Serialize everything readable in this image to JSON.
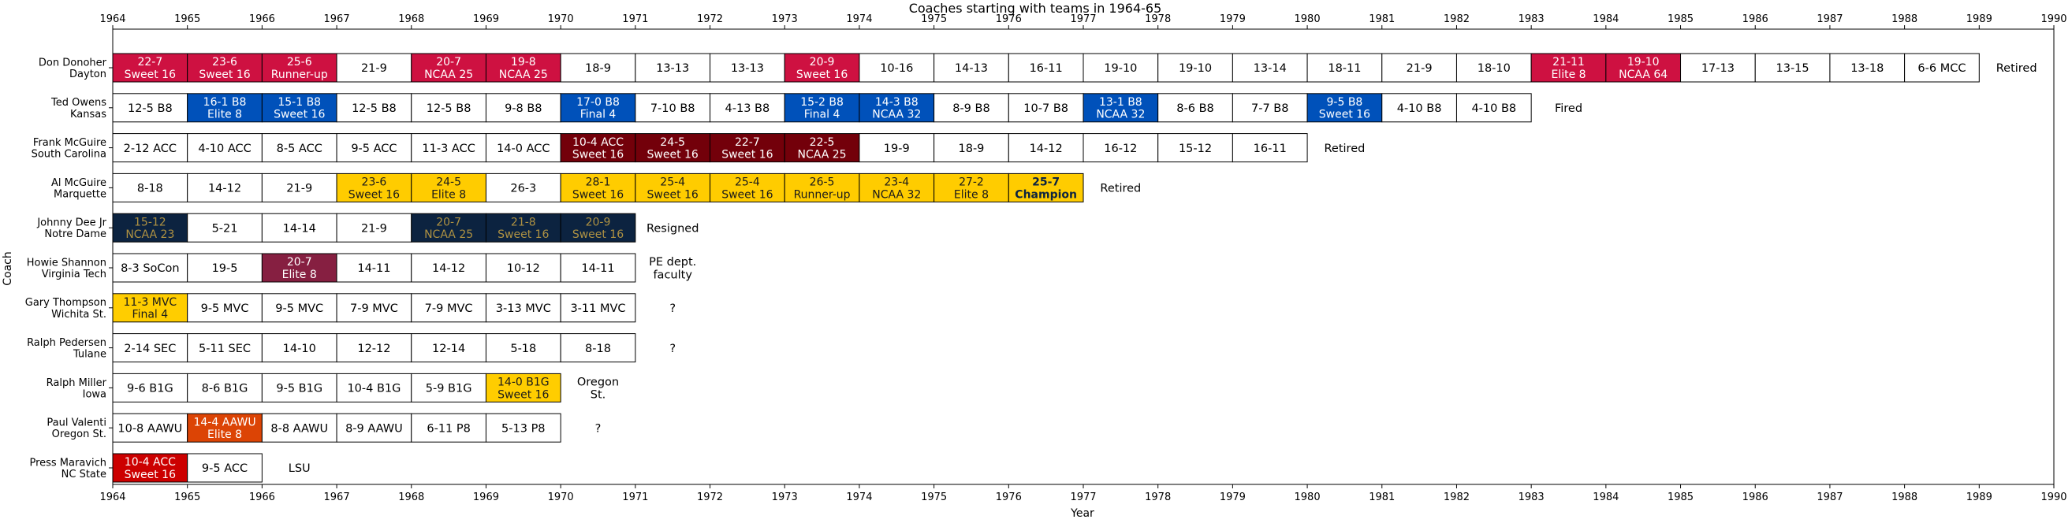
{
  "chart_data": {
    "type": "gantt",
    "title": "Coaches starting with teams in 1964-65",
    "xlabel": "Year",
    "ylabel": "Coach",
    "xlim": [
      1964,
      1990
    ],
    "xticks": [
      1964,
      1965,
      1966,
      1967,
      1968,
      1969,
      1970,
      1971,
      1972,
      1973,
      1974,
      1975,
      1976,
      1977,
      1978,
      1979,
      1980,
      1981,
      1982,
      1983,
      1984,
      1985,
      1986,
      1987,
      1988,
      1989,
      1990
    ],
    "colors": {
      "dayton": "#ce1141",
      "kansas": "#0051ba",
      "southcarolina": "#73000a",
      "marquette": "#ffcc00",
      "notredame": "#0c2340",
      "notredame_text": "#ae9142",
      "virginiatech": "#861f41",
      "wichita": "#ffcd00",
      "iowa": "#ffcd00",
      "oregonst": "#dc4405",
      "ncstate": "#cc0000"
    },
    "coaches": [
      {
        "label": "Don Donoher\nDayton",
        "note": "Retired",
        "seasons": [
          {
            "year": 1964,
            "text": "22-7\nSweet 16",
            "color": "#ce1141",
            "fg": "#ffffff"
          },
          {
            "year": 1965,
            "text": "23-6\nSweet 16",
            "color": "#ce1141",
            "fg": "#ffffff"
          },
          {
            "year": 1966,
            "text": "25-6\nRunner-up",
            "color": "#ce1141",
            "fg": "#ffffff"
          },
          {
            "year": 1967,
            "text": "21-9"
          },
          {
            "year": 1968,
            "text": "20-7\nNCAA 25",
            "color": "#ce1141",
            "fg": "#ffffff"
          },
          {
            "year": 1969,
            "text": "19-8\nNCAA 25",
            "color": "#ce1141",
            "fg": "#ffffff"
          },
          {
            "year": 1970,
            "text": "18-9"
          },
          {
            "year": 1971,
            "text": "13-13"
          },
          {
            "year": 1972,
            "text": "13-13"
          },
          {
            "year": 1973,
            "text": "20-9\nSweet 16",
            "color": "#ce1141",
            "fg": "#ffffff"
          },
          {
            "year": 1974,
            "text": "10-16"
          },
          {
            "year": 1975,
            "text": "14-13"
          },
          {
            "year": 1976,
            "text": "16-11"
          },
          {
            "year": 1977,
            "text": "19-10"
          },
          {
            "year": 1978,
            "text": "19-10"
          },
          {
            "year": 1979,
            "text": "13-14"
          },
          {
            "year": 1980,
            "text": "18-11"
          },
          {
            "year": 1981,
            "text": "21-9"
          },
          {
            "year": 1982,
            "text": "18-10"
          },
          {
            "year": 1983,
            "text": "21-11\nElite 8",
            "color": "#ce1141",
            "fg": "#ffffff"
          },
          {
            "year": 1984,
            "text": "19-10\nNCAA 64",
            "color": "#ce1141",
            "fg": "#ffffff"
          },
          {
            "year": 1985,
            "text": "17-13"
          },
          {
            "year": 1986,
            "text": "13-15"
          },
          {
            "year": 1987,
            "text": "13-18"
          },
          {
            "year": 1988,
            "text": "6-6 MCC"
          }
        ]
      },
      {
        "label": "Ted Owens\nKansas",
        "note": "Fired",
        "seasons": [
          {
            "year": 1964,
            "text": "12-5 B8"
          },
          {
            "year": 1965,
            "text": "16-1 B8\nElite 8",
            "color": "#0051ba",
            "fg": "#ffffff"
          },
          {
            "year": 1966,
            "text": "15-1 B8\nSweet 16",
            "color": "#0051ba",
            "fg": "#ffffff"
          },
          {
            "year": 1967,
            "text": "12-5 B8"
          },
          {
            "year": 1968,
            "text": "12-5 B8"
          },
          {
            "year": 1969,
            "text": "9-8 B8"
          },
          {
            "year": 1970,
            "text": "17-0 B8\nFinal 4",
            "color": "#0051ba",
            "fg": "#ffffff"
          },
          {
            "year": 1971,
            "text": "7-10 B8"
          },
          {
            "year": 1972,
            "text": "4-13 B8"
          },
          {
            "year": 1973,
            "text": "15-2 B8\nFinal 4",
            "color": "#0051ba",
            "fg": "#ffffff"
          },
          {
            "year": 1974,
            "text": "14-3 B8\nNCAA 32",
            "color": "#0051ba",
            "fg": "#ffffff"
          },
          {
            "year": 1975,
            "text": "8-9 B8"
          },
          {
            "year": 1976,
            "text": "10-7 B8"
          },
          {
            "year": 1977,
            "text": "13-1 B8\nNCAA 32",
            "color": "#0051ba",
            "fg": "#ffffff"
          },
          {
            "year": 1978,
            "text": "8-6 B8"
          },
          {
            "year": 1979,
            "text": "7-7 B8"
          },
          {
            "year": 1980,
            "text": "9-5 B8\nSweet 16",
            "color": "#0051ba",
            "fg": "#ffffff"
          },
          {
            "year": 1981,
            "text": "4-10 B8"
          },
          {
            "year": 1982,
            "text": "4-10 B8"
          }
        ]
      },
      {
        "label": "Frank McGuire\nSouth Carolina",
        "note": "Retired",
        "seasons": [
          {
            "year": 1964,
            "text": "2-12 ACC"
          },
          {
            "year": 1965,
            "text": "4-10 ACC"
          },
          {
            "year": 1966,
            "text": "8-5 ACC"
          },
          {
            "year": 1967,
            "text": "9-5 ACC"
          },
          {
            "year": 1968,
            "text": "11-3 ACC"
          },
          {
            "year": 1969,
            "text": "14-0 ACC"
          },
          {
            "year": 1970,
            "text": "10-4 ACC\nSweet 16",
            "color": "#73000a",
            "fg": "#ffffff"
          },
          {
            "year": 1971,
            "text": "24-5\nSweet 16",
            "color": "#73000a",
            "fg": "#ffffff"
          },
          {
            "year": 1972,
            "text": "22-7\nSweet 16",
            "color": "#73000a",
            "fg": "#ffffff"
          },
          {
            "year": 1973,
            "text": "22-5\nNCAA 25",
            "color": "#73000a",
            "fg": "#ffffff"
          },
          {
            "year": 1974,
            "text": "19-9"
          },
          {
            "year": 1975,
            "text": "18-9"
          },
          {
            "year": 1976,
            "text": "14-12"
          },
          {
            "year": 1977,
            "text": "16-12"
          },
          {
            "year": 1978,
            "text": "15-12"
          },
          {
            "year": 1979,
            "text": "16-11"
          }
        ]
      },
      {
        "label": "Al McGuire\nMarquette",
        "note": "Retired",
        "seasons": [
          {
            "year": 1964,
            "text": "8-18"
          },
          {
            "year": 1965,
            "text": "14-12"
          },
          {
            "year": 1966,
            "text": "21-9"
          },
          {
            "year": 1967,
            "text": "23-6\nSweet 16",
            "color": "#ffcc00",
            "fg": "#1a1a1a"
          },
          {
            "year": 1968,
            "text": "24-5\nElite 8",
            "color": "#ffcc00",
            "fg": "#1a1a1a"
          },
          {
            "year": 1969,
            "text": "26-3"
          },
          {
            "year": 1970,
            "text": "28-1\nSweet 16",
            "color": "#ffcc00",
            "fg": "#1a1a1a"
          },
          {
            "year": 1971,
            "text": "25-4\nSweet 16",
            "color": "#ffcc00",
            "fg": "#1a1a1a"
          },
          {
            "year": 1972,
            "text": "25-4\nSweet 16",
            "color": "#ffcc00",
            "fg": "#1a1a1a"
          },
          {
            "year": 1973,
            "text": "26-5\nRunner-up",
            "color": "#ffcc00",
            "fg": "#1a1a1a"
          },
          {
            "year": 1974,
            "text": "23-4\nNCAA 32",
            "color": "#ffcc00",
            "fg": "#1a1a1a"
          },
          {
            "year": 1975,
            "text": "27-2\nElite 8",
            "color": "#ffcc00",
            "fg": "#1a1a1a"
          },
          {
            "year": 1976,
            "text": "25-7\nChampion",
            "color": "#ffcc00",
            "fg": "#0c2340",
            "bold": true
          }
        ]
      },
      {
        "label": "Johnny Dee Jr\nNotre Dame",
        "note": "Resigned",
        "seasons": [
          {
            "year": 1964,
            "text": "15-12\nNCAA 23",
            "color": "#0c2340",
            "fg": "#ae9142"
          },
          {
            "year": 1965,
            "text": "5-21"
          },
          {
            "year": 1966,
            "text": "14-14"
          },
          {
            "year": 1967,
            "text": "21-9"
          },
          {
            "year": 1968,
            "text": "20-7\nNCAA 25",
            "color": "#0c2340",
            "fg": "#ae9142"
          },
          {
            "year": 1969,
            "text": "21-8\nSweet 16",
            "color": "#0c2340",
            "fg": "#ae9142"
          },
          {
            "year": 1970,
            "text": "20-9\nSweet 16",
            "color": "#0c2340",
            "fg": "#ae9142"
          }
        ]
      },
      {
        "label": "Howie Shannon\nVirginia Tech",
        "note": "PE dept.\nfaculty",
        "seasons": [
          {
            "year": 1964,
            "text": "8-3 SoCon"
          },
          {
            "year": 1965,
            "text": "19-5"
          },
          {
            "year": 1966,
            "text": "20-7\nElite 8",
            "color": "#861f41",
            "fg": "#ffffff"
          },
          {
            "year": 1967,
            "text": "14-11"
          },
          {
            "year": 1968,
            "text": "14-12"
          },
          {
            "year": 1969,
            "text": "10-12"
          },
          {
            "year": 1970,
            "text": "14-11"
          }
        ]
      },
      {
        "label": "Gary Thompson\nWichita St.",
        "note": "?",
        "seasons": [
          {
            "year": 1964,
            "text": "11-3 MVC\nFinal 4",
            "color": "#ffcd00",
            "fg": "#1a1a1a"
          },
          {
            "year": 1965,
            "text": "9-5 MVC"
          },
          {
            "year": 1966,
            "text": "9-5 MVC"
          },
          {
            "year": 1967,
            "text": "7-9 MVC"
          },
          {
            "year": 1968,
            "text": "7-9 MVC"
          },
          {
            "year": 1969,
            "text": "3-13 MVC"
          },
          {
            "year": 1970,
            "text": "3-11 MVC"
          }
        ]
      },
      {
        "label": "Ralph Pedersen\nTulane",
        "note": "?",
        "seasons": [
          {
            "year": 1964,
            "text": "2-14 SEC"
          },
          {
            "year": 1965,
            "text": "5-11 SEC"
          },
          {
            "year": 1966,
            "text": "14-10"
          },
          {
            "year": 1967,
            "text": "12-12"
          },
          {
            "year": 1968,
            "text": "12-14"
          },
          {
            "year": 1969,
            "text": "5-18"
          },
          {
            "year": 1970,
            "text": "8-18"
          }
        ]
      },
      {
        "label": "Ralph Miller\nIowa",
        "note": "Oregon\nSt.",
        "seasons": [
          {
            "year": 1964,
            "text": "9-6 B1G"
          },
          {
            "year": 1965,
            "text": "8-6 B1G"
          },
          {
            "year": 1966,
            "text": "9-5 B1G"
          },
          {
            "year": 1967,
            "text": "10-4 B1G"
          },
          {
            "year": 1968,
            "text": "5-9 B1G"
          },
          {
            "year": 1969,
            "text": "14-0 B1G\nSweet 16",
            "color": "#ffcd00",
            "fg": "#1a1a1a"
          }
        ]
      },
      {
        "label": "Paul Valenti\nOregon St.",
        "note": "?",
        "seasons": [
          {
            "year": 1964,
            "text": "10-8 AAWU"
          },
          {
            "year": 1965,
            "text": "14-4 AAWU\nElite 8",
            "color": "#dc4405",
            "fg": "#ffffff"
          },
          {
            "year": 1966,
            "text": "8-8 AAWU"
          },
          {
            "year": 1967,
            "text": "8-9 AAWU"
          },
          {
            "year": 1968,
            "text": "6-11 P8"
          },
          {
            "year": 1969,
            "text": "5-13 P8"
          }
        ]
      },
      {
        "label": "Press Maravich\nNC State",
        "note": "LSU",
        "seasons": [
          {
            "year": 1964,
            "text": "10-4 ACC\nSweet 16",
            "color": "#cc0000",
            "fg": "#ffffff"
          },
          {
            "year": 1965,
            "text": "9-5 ACC"
          }
        ]
      }
    ]
  }
}
